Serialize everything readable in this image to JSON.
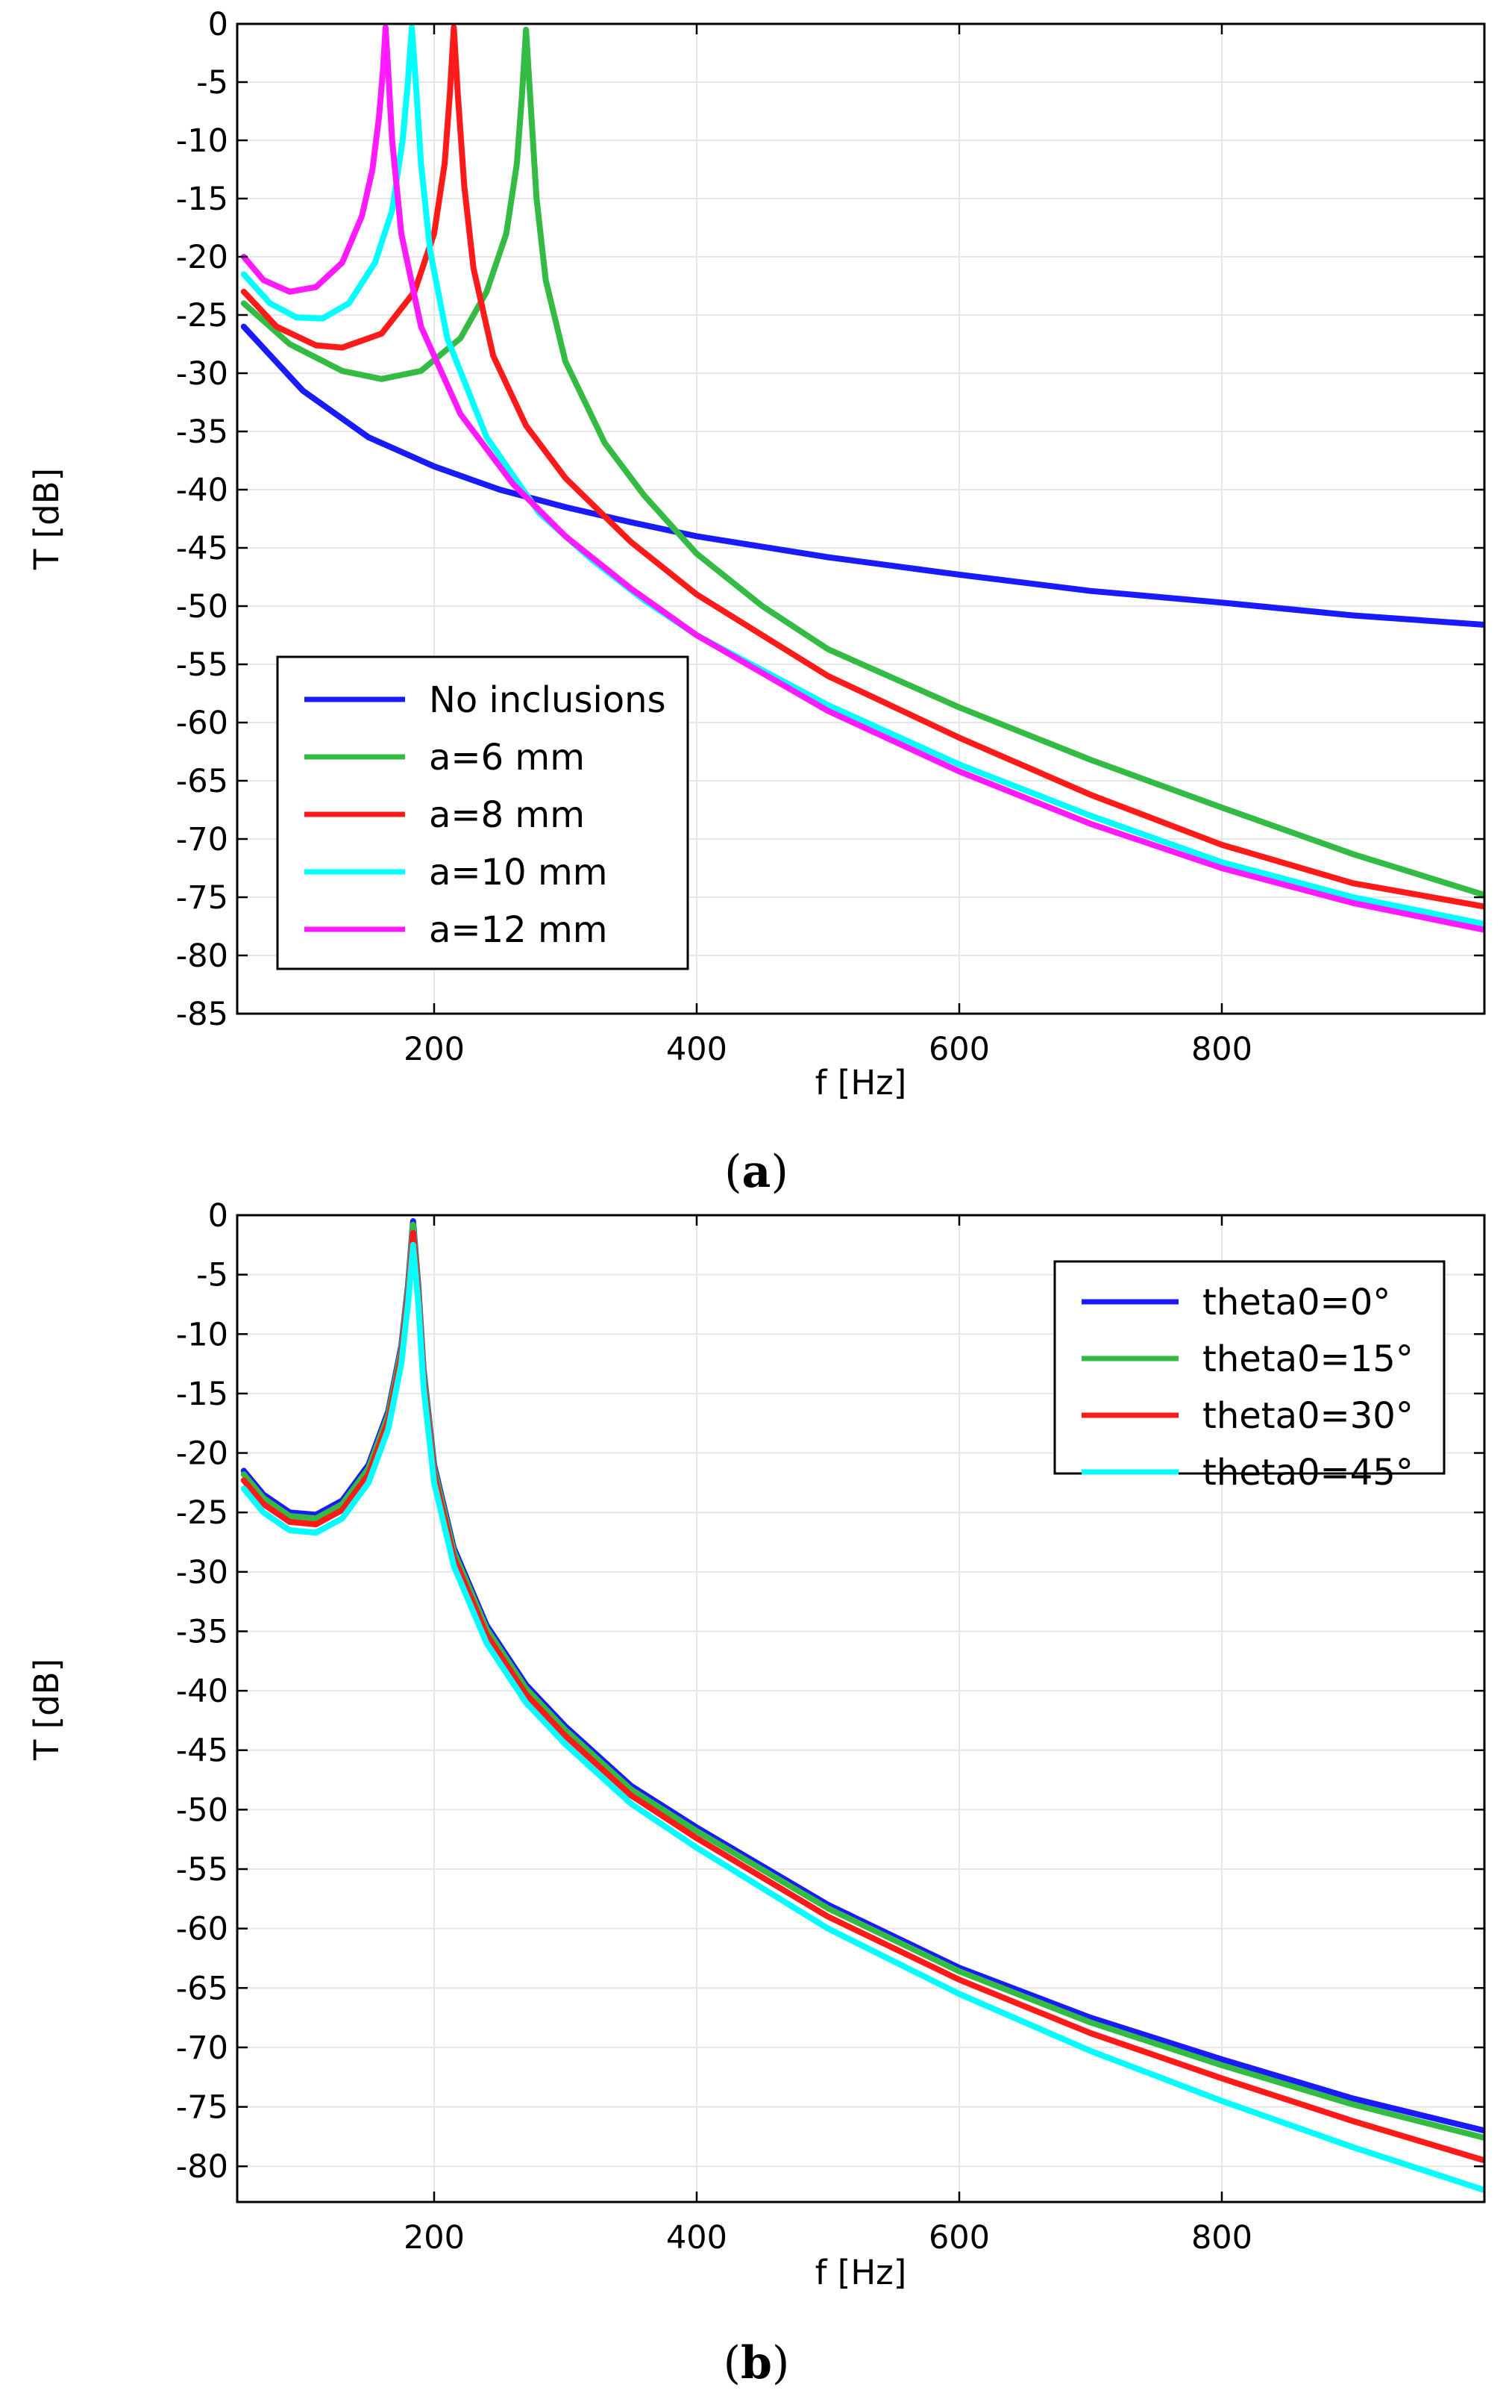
{
  "chart_data": [
    {
      "id": "a",
      "type": "line",
      "panel_label": "a",
      "xlabel": "f [Hz]",
      "ylabel": "T [dB]",
      "xlim": [
        50,
        1000
      ],
      "ylim": [
        -85,
        0
      ],
      "xticks": [
        200,
        400,
        600,
        800
      ],
      "yticks": [
        0,
        -5,
        -10,
        -15,
        -20,
        -25,
        -30,
        -35,
        -40,
        -45,
        -50,
        -55,
        -60,
        -65,
        -70,
        -75,
        -80,
        -85
      ],
      "legend_position": "bottom-left",
      "series": [
        {
          "name": "No inclusions",
          "color": "#1a1aff",
          "x": [
            55,
            100,
            150,
            200,
            250,
            300,
            350,
            400,
            500,
            600,
            700,
            800,
            900,
            1000
          ],
          "y": [
            -26,
            -31.5,
            -35.5,
            -38,
            -40,
            -41.5,
            -42.8,
            -44,
            -45.8,
            -47.3,
            -48.7,
            -49.7,
            -50.8,
            -51.6
          ]
        },
        {
          "name": "a=6 mm",
          "color": "#33bb44",
          "peak_x": 270,
          "x": [
            55,
            90,
            130,
            160,
            190,
            220,
            240,
            255,
            263,
            267,
            270,
            273,
            278,
            285,
            300,
            330,
            360,
            400,
            450,
            500,
            600,
            700,
            800,
            900,
            1000
          ],
          "y": [
            -24,
            -27.5,
            -29.8,
            -30.5,
            -29.8,
            -27,
            -23,
            -18,
            -12,
            -6,
            -0.5,
            -6,
            -15,
            -22,
            -29,
            -36,
            -40.5,
            -45.5,
            -50,
            -53.7,
            -58.7,
            -63.2,
            -67.3,
            -71.3,
            -74.8
          ]
        },
        {
          "name": "a=8 mm",
          "color": "#ff1a1a",
          "peak_x": 215,
          "x": [
            55,
            80,
            110,
            130,
            160,
            185,
            200,
            208,
            212,
            215,
            218,
            223,
            230,
            245,
            270,
            300,
            350,
            400,
            500,
            600,
            700,
            800,
            900,
            1000
          ],
          "y": [
            -23,
            -26,
            -27.6,
            -27.8,
            -26.6,
            -23,
            -18,
            -12,
            -6,
            -0.3,
            -6,
            -14,
            -21,
            -28.5,
            -34.5,
            -39,
            -44.5,
            -49,
            -56,
            -61.3,
            -66.2,
            -70.5,
            -73.8,
            -75.8
          ]
        },
        {
          "name": "a=10 mm",
          "color": "#00ffff",
          "peak_x": 183,
          "x": [
            55,
            75,
            95,
            115,
            135,
            155,
            168,
            176,
            180,
            183,
            186,
            190,
            197,
            210,
            240,
            280,
            320,
            360,
            400,
            500,
            600,
            700,
            800,
            900,
            1000
          ],
          "y": [
            -21.5,
            -24,
            -25.2,
            -25.3,
            -24,
            -20.5,
            -16,
            -10,
            -5,
            -0.3,
            -5,
            -12,
            -19.5,
            -27,
            -35.5,
            -42,
            -46,
            -49.5,
            -52.5,
            -58.5,
            -63.6,
            -68,
            -72,
            -75,
            -77.3
          ]
        },
        {
          "name": "a=12 mm",
          "color": "#ff1aff",
          "peak_x": 163,
          "x": [
            55,
            70,
            90,
            110,
            130,
            145,
            153,
            158,
            161,
            163,
            165,
            168,
            175,
            190,
            220,
            260,
            300,
            350,
            400,
            500,
            600,
            700,
            800,
            900,
            1000
          ],
          "y": [
            -20,
            -22,
            -23,
            -22.6,
            -20.5,
            -16.5,
            -12.5,
            -8,
            -4,
            -0.3,
            -4,
            -10,
            -18,
            -26,
            -33.5,
            -39.5,
            -44,
            -48.5,
            -52.5,
            -59,
            -64.2,
            -68.7,
            -72.5,
            -75.5,
            -77.8
          ]
        }
      ]
    },
    {
      "id": "b",
      "type": "line",
      "panel_label": "b",
      "xlabel": "f [Hz]",
      "ylabel": "T [dB]",
      "xlim": [
        50,
        1000
      ],
      "ylim": [
        -83,
        0
      ],
      "xticks": [
        200,
        400,
        600,
        800
      ],
      "yticks": [
        0,
        -5,
        -10,
        -15,
        -20,
        -25,
        -30,
        -35,
        -40,
        -45,
        -50,
        -55,
        -60,
        -65,
        -70,
        -75,
        -80
      ],
      "legend_position": "top-right",
      "series": [
        {
          "name": "theta0=0°",
          "color": "#1a1aff",
          "peak_x": 184,
          "x": [
            55,
            70,
            90,
            110,
            130,
            150,
            165,
            175,
            180,
            184,
            188,
            192,
            200,
            215,
            240,
            270,
            300,
            350,
            400,
            500,
            600,
            700,
            800,
            900,
            1000
          ],
          "y": [
            -21.5,
            -23.5,
            -25,
            -25.2,
            -24,
            -21,
            -16.5,
            -11,
            -6,
            -0.5,
            -6,
            -13,
            -21,
            -28,
            -34.5,
            -39.5,
            -43,
            -48,
            -51.5,
            -58,
            -63.3,
            -67.5,
            -71,
            -74.3,
            -77
          ]
        },
        {
          "name": "theta0=15°",
          "color": "#33bb44",
          "peak_x": 184,
          "x": [
            55,
            70,
            90,
            110,
            130,
            150,
            165,
            175,
            180,
            184,
            188,
            192,
            200,
            215,
            240,
            270,
            300,
            350,
            400,
            500,
            600,
            700,
            800,
            900,
            1000
          ],
          "y": [
            -21.8,
            -23.8,
            -25.3,
            -25.5,
            -24.3,
            -21.3,
            -16.8,
            -11.3,
            -6.3,
            -0.8,
            -6.3,
            -13.3,
            -21.3,
            -28.3,
            -34.8,
            -39.8,
            -43.3,
            -48.3,
            -51.8,
            -58.3,
            -63.6,
            -67.9,
            -71.5,
            -74.8,
            -77.6
          ]
        },
        {
          "name": "theta0=30°",
          "color": "#ff1a1a",
          "peak_x": 184,
          "x": [
            55,
            70,
            90,
            110,
            130,
            150,
            165,
            175,
            180,
            184,
            188,
            192,
            200,
            215,
            240,
            270,
            300,
            350,
            400,
            500,
            600,
            700,
            800,
            900,
            1000
          ],
          "y": [
            -22.3,
            -24.3,
            -25.8,
            -26,
            -24.8,
            -21.8,
            -17.3,
            -11.8,
            -6.8,
            -1.5,
            -6.8,
            -13.8,
            -21.8,
            -28.8,
            -35.3,
            -40.3,
            -43.8,
            -48.8,
            -52.4,
            -59,
            -64.3,
            -68.8,
            -72.6,
            -76.2,
            -79.5
          ]
        },
        {
          "name": "theta0=45°",
          "color": "#00ffff",
          "peak_x": 184,
          "x": [
            55,
            70,
            90,
            110,
            130,
            150,
            165,
            175,
            180,
            184,
            188,
            192,
            200,
            215,
            240,
            270,
            300,
            350,
            400,
            500,
            600,
            700,
            800,
            900,
            1000
          ],
          "y": [
            -23,
            -25,
            -26.5,
            -26.7,
            -25.5,
            -22.5,
            -18,
            -12.5,
            -7.5,
            -2.5,
            -7.5,
            -14.5,
            -22.5,
            -29.5,
            -36,
            -41,
            -44.5,
            -49.5,
            -53.2,
            -60,
            -65.5,
            -70.3,
            -74.5,
            -78.4,
            -82
          ]
        }
      ]
    }
  ]
}
